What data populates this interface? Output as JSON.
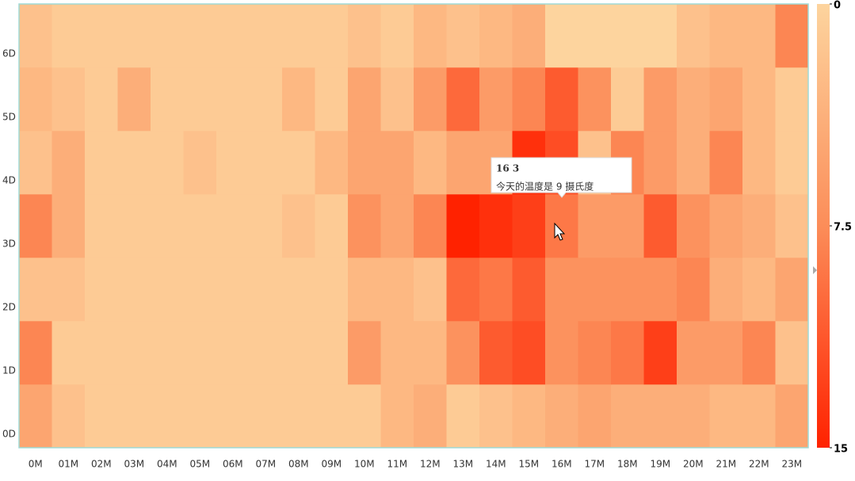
{
  "chart_data": {
    "type": "heatmap",
    "x_categories": [
      "0M",
      "01M",
      "02M",
      "03M",
      "04M",
      "05M",
      "06M",
      "07M",
      "08M",
      "09M",
      "10M",
      "11M",
      "12M",
      "13M",
      "14M",
      "15M",
      "16M",
      "17M",
      "18M",
      "19M",
      "20M",
      "21M",
      "22M",
      "23M"
    ],
    "y_categories": [
      "0D",
      "1D",
      "2D",
      "3D",
      "4D",
      "5D",
      "6D"
    ],
    "values": [
      [
        5,
        2,
        1,
        1,
        1,
        1,
        1,
        1,
        1,
        1,
        1,
        3,
        4,
        1,
        2,
        3,
        4,
        5,
        4,
        4,
        4,
        3,
        3,
        5
      ],
      [
        8,
        1,
        1,
        1,
        1,
        1,
        1,
        1,
        1,
        1,
        6,
        3,
        3,
        7,
        11,
        12,
        7,
        8,
        9,
        13,
        6,
        6,
        8,
        2
      ],
      [
        2,
        2,
        1,
        1,
        1,
        1,
        1,
        1,
        1,
        1,
        3,
        3,
        2,
        10,
        9,
        11,
        7,
        7,
        7,
        7,
        8,
        4,
        3,
        5
      ],
      [
        8,
        4,
        1,
        1,
        1,
        1,
        1,
        1,
        2,
        1,
        7,
        5,
        8,
        15,
        14,
        13,
        9,
        6,
        6,
        11,
        7,
        5,
        4,
        2
      ],
      [
        2,
        4,
        1,
        1,
        1,
        2,
        1,
        1,
        1,
        3,
        5,
        5,
        3,
        5,
        5,
        14,
        12,
        2,
        8,
        6,
        4,
        8,
        3,
        1
      ],
      [
        3,
        2,
        1,
        4,
        1,
        1,
        1,
        1,
        3,
        1,
        5,
        2,
        6,
        10,
        6,
        8,
        11,
        7,
        1,
        6,
        4,
        5,
        3,
        1
      ],
      [
        2,
        1,
        1,
        1,
        1,
        1,
        1,
        1,
        1,
        1,
        2,
        1,
        3,
        2,
        3,
        4,
        0,
        0,
        0,
        0,
        2,
        3,
        3,
        8
      ]
    ],
    "visual_map": {
      "range": [
        0,
        15
      ],
      "ticks": [
        0,
        7.5,
        15
      ],
      "colors": [
        "#fdd49e",
        "#fc8d59",
        "#ff2200"
      ]
    },
    "tooltip": {
      "title": "16 3",
      "text": "今天的温度是 9 摄氏度"
    }
  }
}
